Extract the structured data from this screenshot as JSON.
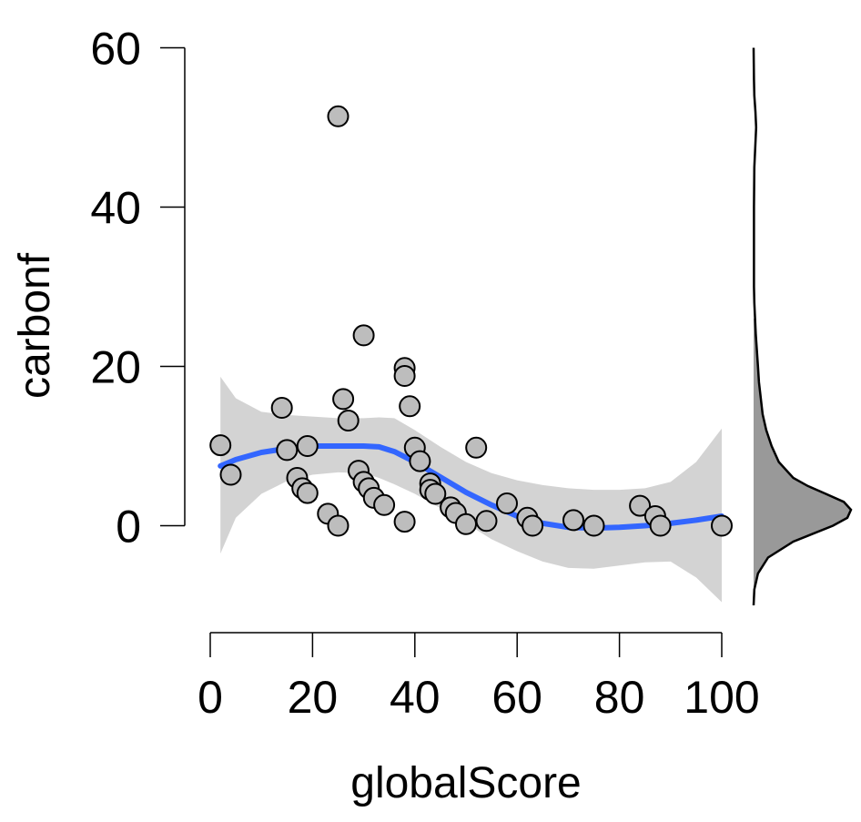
{
  "chart_data": {
    "type": "scatter",
    "xlabel": "globalScore",
    "ylabel": "carbonf",
    "xlim": [
      0,
      100
    ],
    "ylim": [
      -10,
      60
    ],
    "x_ticks": [
      0,
      20,
      40,
      60,
      80,
      100
    ],
    "y_ticks": [
      0,
      20,
      40,
      60
    ],
    "grid": false,
    "points": [
      {
        "x": 2,
        "y": 10.1
      },
      {
        "x": 4,
        "y": 6.4
      },
      {
        "x": 14,
        "y": 14.8
      },
      {
        "x": 15,
        "y": 9.5
      },
      {
        "x": 17,
        "y": 6.0
      },
      {
        "x": 18,
        "y": 4.7
      },
      {
        "x": 19,
        "y": 10.0
      },
      {
        "x": 19,
        "y": 4.1
      },
      {
        "x": 23,
        "y": 1.5
      },
      {
        "x": 25,
        "y": 0.0
      },
      {
        "x": 25,
        "y": 51.4
      },
      {
        "x": 26,
        "y": 15.9
      },
      {
        "x": 27,
        "y": 13.2
      },
      {
        "x": 29,
        "y": 6.9
      },
      {
        "x": 30,
        "y": 23.9
      },
      {
        "x": 30,
        "y": 5.5
      },
      {
        "x": 31,
        "y": 4.7
      },
      {
        "x": 32,
        "y": 3.5
      },
      {
        "x": 34,
        "y": 2.6
      },
      {
        "x": 38,
        "y": 19.8
      },
      {
        "x": 38,
        "y": 18.8
      },
      {
        "x": 38,
        "y": 0.5
      },
      {
        "x": 39,
        "y": 15.0
      },
      {
        "x": 40,
        "y": 9.8
      },
      {
        "x": 41,
        "y": 8.1
      },
      {
        "x": 43,
        "y": 5.3
      },
      {
        "x": 43,
        "y": 4.5
      },
      {
        "x": 44,
        "y": 4.0
      },
      {
        "x": 47,
        "y": 2.3
      },
      {
        "x": 48,
        "y": 1.6
      },
      {
        "x": 50,
        "y": 0.2
      },
      {
        "x": 52,
        "y": 9.8
      },
      {
        "x": 54,
        "y": 0.6
      },
      {
        "x": 58,
        "y": 2.8
      },
      {
        "x": 62,
        "y": 1.0
      },
      {
        "x": 63,
        "y": 0.0
      },
      {
        "x": 71,
        "y": 0.7
      },
      {
        "x": 75,
        "y": 0.0
      },
      {
        "x": 84,
        "y": 2.5
      },
      {
        "x": 87,
        "y": 1.2
      },
      {
        "x": 88,
        "y": 0.0
      },
      {
        "x": 100,
        "y": 0.0
      }
    ],
    "smooth": {
      "x": [
        2,
        5,
        10,
        15,
        20,
        25,
        30,
        33,
        36,
        40,
        45,
        50,
        55,
        60,
        65,
        70,
        75,
        80,
        85,
        90,
        95,
        100
      ],
      "y": [
        7.5,
        8.3,
        9.2,
        9.7,
        10.0,
        10.0,
        10.0,
        9.9,
        9.3,
        8.0,
        6.1,
        4.2,
        2.6,
        1.2,
        0.3,
        -0.2,
        -0.3,
        -0.2,
        0.0,
        0.3,
        0.7,
        1.2
      ],
      "lower": [
        -3.5,
        1.0,
        4.0,
        5.6,
        6.4,
        6.7,
        6.6,
        6.0,
        5.2,
        4.0,
        2.2,
        0.3,
        -1.7,
        -3.2,
        -4.5,
        -5.3,
        -5.4,
        -5.0,
        -4.6,
        -4.5,
        -6.5,
        -9.6
      ],
      "upper": [
        18.7,
        16.0,
        14.3,
        13.9,
        13.7,
        13.5,
        13.5,
        13.6,
        13.5,
        12.0,
        9.9,
        8.0,
        6.6,
        5.7,
        5.1,
        4.7,
        4.5,
        4.5,
        4.7,
        5.5,
        8.0,
        12.2
      ]
    },
    "density": {
      "y": [
        -10,
        -8,
        -6,
        -4,
        -2,
        0,
        1,
        2,
        3,
        4,
        5,
        6,
        8,
        10,
        12,
        14,
        16,
        18,
        20,
        22,
        24,
        26,
        28,
        30,
        35,
        40,
        45,
        48,
        50,
        52,
        54,
        56,
        58,
        60
      ],
      "d": [
        0.0,
        0.002,
        0.012,
        0.04,
        0.11,
        0.22,
        0.26,
        0.27,
        0.25,
        0.2,
        0.15,
        0.11,
        0.07,
        0.05,
        0.035,
        0.025,
        0.02,
        0.015,
        0.012,
        0.009,
        0.006,
        0.004,
        0.002,
        0.001,
        0.001,
        0.001,
        0.002,
        0.005,
        0.007,
        0.005,
        0.002,
        0.001,
        0.0005,
        0.0
      ]
    },
    "colors": {
      "points_fill": "#bdbdbd",
      "points_stroke": "#000000",
      "smooth_line": "#3366ff",
      "ribbon": "#d3d3d3",
      "density_fill": "#999999"
    }
  }
}
